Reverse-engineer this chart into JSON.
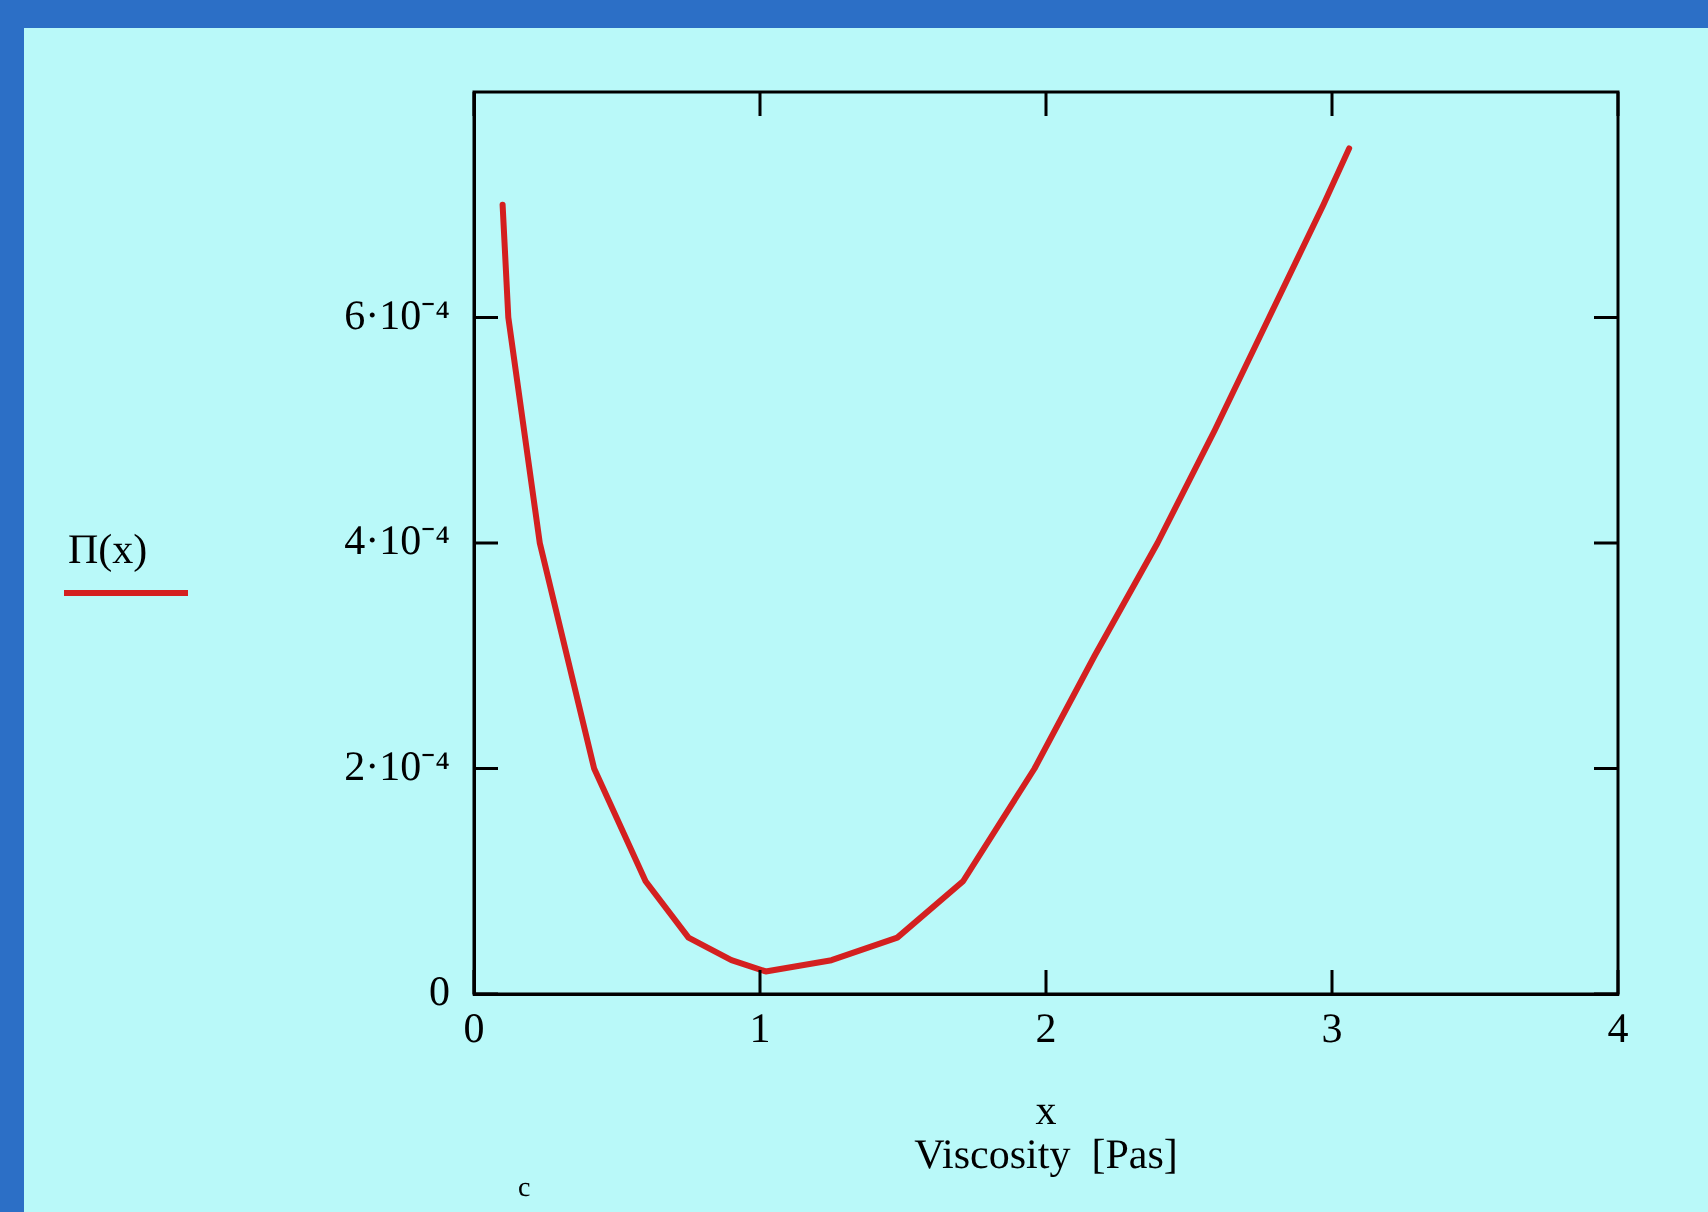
{
  "chart_data": {
    "type": "line",
    "xlabel": "x",
    "annotations": [
      "Viscosity  [Pas]",
      "c"
    ],
    "x": [
      0.1,
      0.12,
      0.23,
      0.42,
      0.6,
      0.75,
      0.9,
      1.02,
      1.25,
      1.48,
      1.71,
      1.96,
      2.17,
      2.39,
      2.59,
      2.78,
      2.97,
      3.06
    ],
    "series": [
      {
        "name": "Π(x)",
        "color": "#d42020",
        "values": [
          0.0007,
          0.0006,
          0.0004,
          0.0002,
          0.0001,
          5e-05,
          3e-05,
          2e-05,
          3e-05,
          5e-05,
          0.0001,
          0.0002,
          0.0003,
          0.0004,
          0.0005,
          0.0006,
          0.0007,
          0.00075
        ]
      }
    ],
    "xlim": [
      0,
      4
    ],
    "ylim": [
      0,
      0.0008
    ],
    "xticks": [
      0,
      1,
      2,
      3,
      4
    ],
    "yticks": [
      0,
      {
        "value": 0.0002,
        "label": "2·10⁻⁴"
      },
      {
        "value": 0.0004,
        "label": "4·10⁻⁴"
      },
      {
        "value": 0.0006,
        "label": "6·10⁻⁴"
      }
    ],
    "grid": false,
    "legend": "left",
    "marker": "none",
    "line_style": "solid"
  }
}
